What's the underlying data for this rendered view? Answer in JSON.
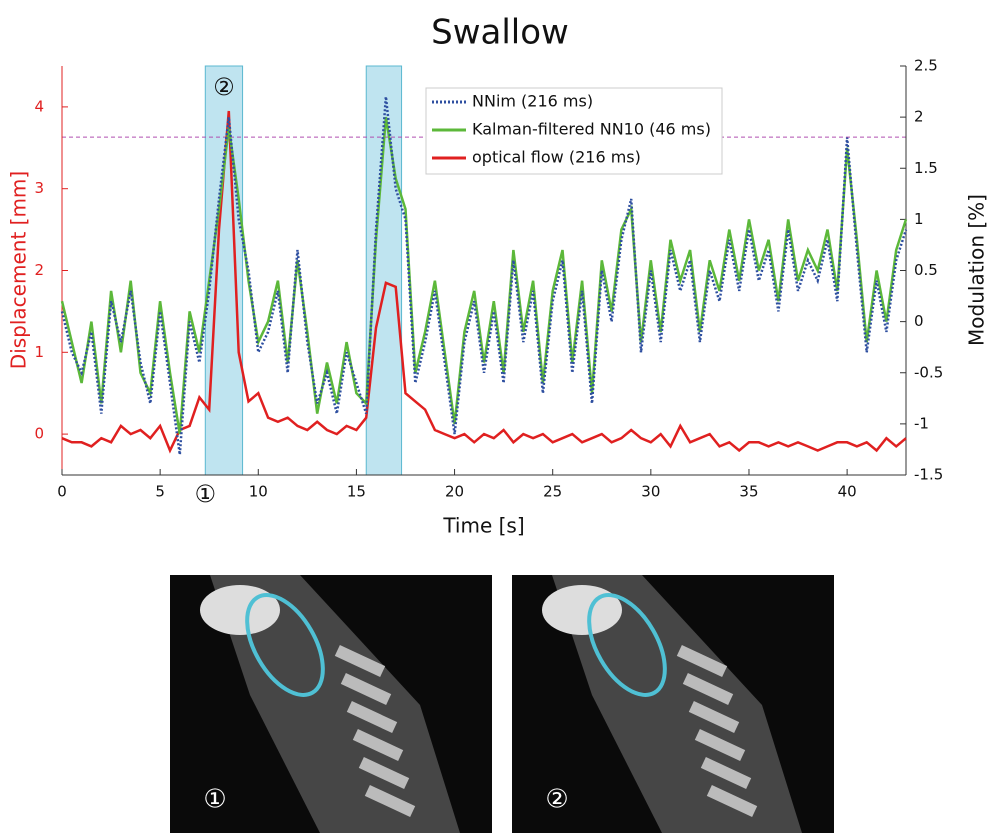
{
  "chart_data": {
    "type": "line",
    "title": "Swallow",
    "x_label": "Time [s]",
    "y_label": "Displacement [mm]",
    "y2_label": "Modulation [%]",
    "xlim": [
      0,
      43
    ],
    "xticks": [
      0,
      5,
      10,
      15,
      20,
      25,
      30,
      35,
      40
    ],
    "ylim": [
      -0.5,
      4.5
    ],
    "yticks": [
      0,
      1,
      2,
      3,
      4
    ],
    "y2lim": [
      -1.5,
      2.5
    ],
    "y2ticks": [
      -1.5,
      -1,
      -0.5,
      0,
      0.5,
      1,
      1.5,
      2,
      2.5
    ],
    "threshold": 3.63,
    "threshold_color": "#b04fb0",
    "highlight_spans": [
      [
        7.3,
        9.2
      ],
      [
        15.5,
        17.3
      ]
    ],
    "highlight_color": "#bfe4f0",
    "annotations": [
      "②",
      "①"
    ],
    "x": [
      0,
      0.5,
      1,
      1.5,
      2,
      2.5,
      3,
      3.5,
      4,
      4.5,
      5,
      5.5,
      6,
      6.5,
      7,
      7.5,
      8,
      8.5,
      9,
      9.5,
      10,
      10.5,
      11,
      11.5,
      12,
      12.5,
      13,
      13.5,
      14,
      14.5,
      15,
      15.5,
      16,
      16.5,
      17,
      17.5,
      18,
      18.5,
      19,
      19.5,
      20,
      20.5,
      21,
      21.5,
      22,
      22.5,
      23,
      23.5,
      24,
      24.5,
      25,
      25.5,
      26,
      26.5,
      27,
      27.5,
      28,
      28.5,
      29,
      29.5,
      30,
      30.5,
      31,
      31.5,
      32,
      32.5,
      33,
      33.5,
      34,
      34.5,
      35,
      35.5,
      36,
      36.5,
      37,
      37.5,
      38,
      38.5,
      39,
      39.5,
      40,
      40.5,
      41,
      41.5,
      42,
      42.5,
      43
    ],
    "series": [
      {
        "name": "NNim (216 ms)",
        "color": "#2e4fa0",
        "style": "dotted",
        "axis": "y2",
        "values": [
          0.1,
          -0.3,
          -0.5,
          -0.1,
          -0.9,
          0.2,
          -0.2,
          0.3,
          -0.4,
          -0.8,
          0.1,
          -0.6,
          -1.3,
          0.0,
          -0.4,
          0.3,
          1.2,
          2.0,
          1.0,
          0.5,
          -0.3,
          -0.1,
          0.3,
          -0.5,
          0.7,
          -0.2,
          -0.8,
          -0.5,
          -0.9,
          -0.3,
          -0.6,
          -0.9,
          0.9,
          2.2,
          1.3,
          1.0,
          -0.6,
          -0.2,
          0.3,
          -0.4,
          -1.1,
          -0.2,
          0.2,
          -0.5,
          0.1,
          -0.6,
          0.6,
          -0.2,
          0.3,
          -0.7,
          0.2,
          0.6,
          -0.5,
          0.3,
          -0.8,
          0.5,
          0.0,
          0.8,
          1.2,
          -0.3,
          0.5,
          -0.2,
          0.7,
          0.3,
          0.6,
          -0.2,
          0.5,
          0.2,
          0.8,
          0.3,
          0.9,
          0.4,
          0.7,
          0.1,
          0.9,
          0.3,
          0.6,
          0.4,
          0.8,
          0.2,
          1.8,
          0.7,
          -0.3,
          0.4,
          -0.1,
          0.6,
          0.9
        ]
      },
      {
        "name": "Kalman-filtered NN10 (46 ms)",
        "color": "#5cb83a",
        "style": "solid",
        "axis": "y2",
        "values": [
          0.2,
          -0.2,
          -0.6,
          0.0,
          -0.8,
          0.3,
          -0.3,
          0.4,
          -0.5,
          -0.7,
          0.2,
          -0.5,
          -1.1,
          0.1,
          -0.3,
          0.4,
          1.1,
          1.9,
          1.2,
          0.4,
          -0.2,
          0.0,
          0.4,
          -0.4,
          0.6,
          -0.1,
          -0.9,
          -0.4,
          -0.8,
          -0.2,
          -0.7,
          -0.8,
          0.8,
          2.0,
          1.4,
          1.1,
          -0.5,
          -0.1,
          0.4,
          -0.3,
          -1.0,
          -0.1,
          0.3,
          -0.4,
          0.2,
          -0.5,
          0.7,
          -0.1,
          0.4,
          -0.6,
          0.3,
          0.7,
          -0.4,
          0.4,
          -0.7,
          0.6,
          0.1,
          0.9,
          1.1,
          -0.2,
          0.6,
          -0.1,
          0.8,
          0.4,
          0.7,
          -0.1,
          0.6,
          0.3,
          0.9,
          0.4,
          1.0,
          0.5,
          0.8,
          0.2,
          1.0,
          0.4,
          0.7,
          0.5,
          0.9,
          0.3,
          1.7,
          0.8,
          -0.2,
          0.5,
          0.0,
          0.7,
          1.0
        ]
      },
      {
        "name": "optical flow (216 ms)",
        "color": "#e02020",
        "style": "solid",
        "axis": "y",
        "values": [
          -0.05,
          -0.1,
          -0.1,
          -0.15,
          -0.05,
          -0.1,
          0.1,
          0,
          0.05,
          -0.05,
          0.1,
          -0.2,
          0.05,
          0.1,
          0.45,
          0.3,
          2.5,
          3.95,
          1.0,
          0.4,
          0.5,
          0.2,
          0.15,
          0.2,
          0.1,
          0.05,
          0.15,
          0.05,
          0,
          0.1,
          0.05,
          0.2,
          1.3,
          1.85,
          1.8,
          0.5,
          0.4,
          0.3,
          0.05,
          0,
          -0.05,
          0,
          -0.1,
          0,
          -0.05,
          0.05,
          -0.1,
          0,
          -0.05,
          0,
          -0.1,
          -0.05,
          0,
          -0.1,
          -0.05,
          0,
          -0.1,
          -0.05,
          0.05,
          -0.05,
          -0.1,
          0,
          -0.15,
          0.1,
          -0.1,
          -0.05,
          0,
          -0.15,
          -0.1,
          -0.2,
          -0.1,
          -0.1,
          -0.15,
          -0.1,
          -0.15,
          -0.1,
          -0.15,
          -0.2,
          -0.15,
          -0.1,
          -0.1,
          -0.15,
          -0.1,
          -0.2,
          -0.05,
          -0.15,
          -0.05
        ]
      }
    ]
  },
  "panels": [
    {
      "label": "①"
    },
    {
      "label": "②"
    }
  ]
}
